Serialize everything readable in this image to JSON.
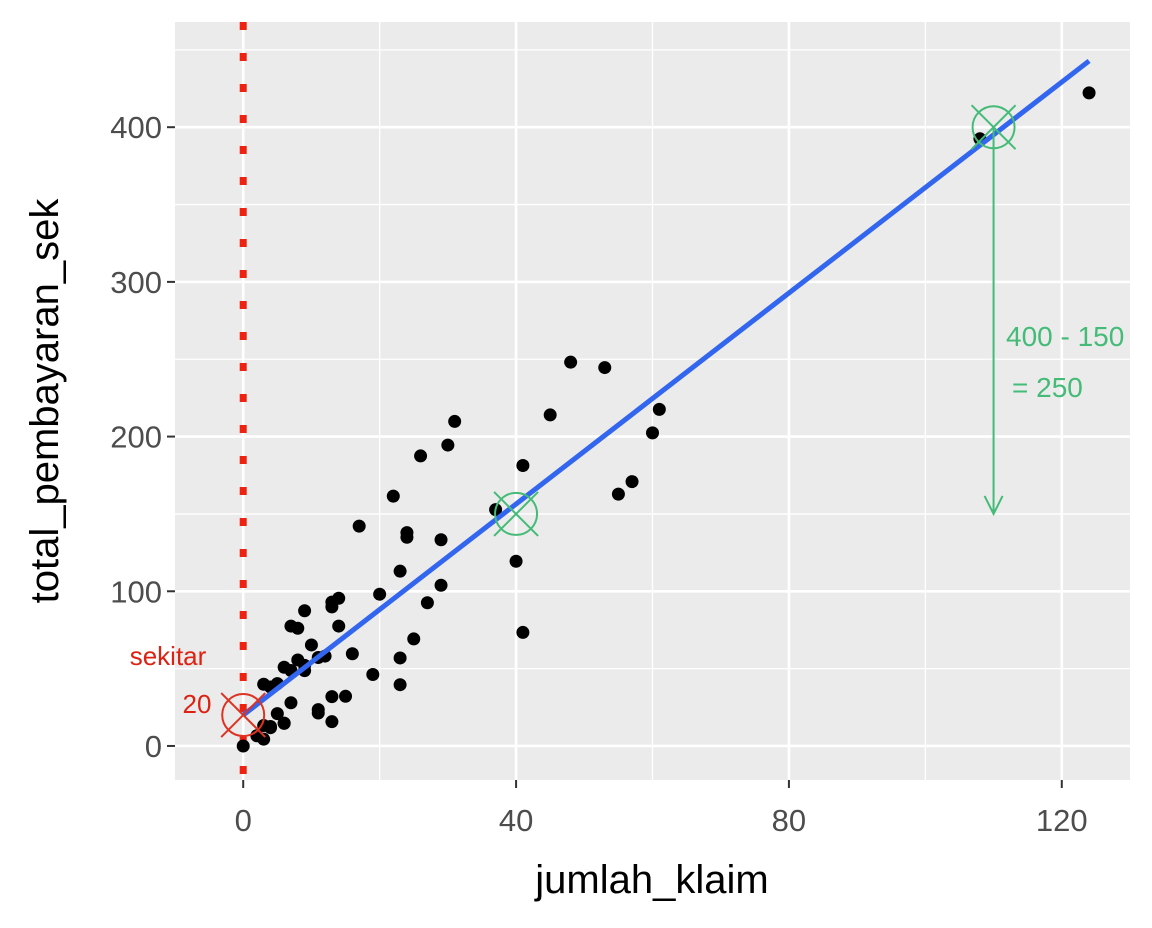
{
  "chart_data": {
    "type": "scatter",
    "title": "",
    "xlabel": "jumlah_klaim",
    "ylabel": "total_pembayaran_sek",
    "xlim": [
      -10,
      130
    ],
    "ylim": [
      -22,
      468
    ],
    "x_ticks": [
      "0",
      "40",
      "80",
      "120"
    ],
    "x_tick_values": [
      0,
      40,
      80,
      120
    ],
    "y_ticks": [
      "0",
      "100",
      "200",
      "300",
      "400"
    ],
    "y_tick_values": [
      0,
      100,
      200,
      300,
      400
    ],
    "grid": true,
    "background": "#ebebeb",
    "point_color": "#000000",
    "points": [
      [
        108,
        392.5
      ],
      [
        19,
        46.2
      ],
      [
        13,
        15.7
      ],
      [
        124,
        422.2
      ],
      [
        40,
        119.4
      ],
      [
        57,
        170.9
      ],
      [
        23,
        56.9
      ],
      [
        14,
        77.5
      ],
      [
        45,
        214
      ],
      [
        10,
        65.3
      ],
      [
        5,
        20.9
      ],
      [
        48,
        248.1
      ],
      [
        11,
        23.5
      ],
      [
        23,
        39.6
      ],
      [
        7,
        48.8
      ],
      [
        2,
        6.6
      ],
      [
        24,
        134.9
      ],
      [
        6,
        50.9
      ],
      [
        3,
        4.4
      ],
      [
        23,
        113
      ],
      [
        6,
        14.8
      ],
      [
        9,
        48.7
      ],
      [
        9,
        52.1
      ],
      [
        3,
        13.2
      ],
      [
        29,
        103.9
      ],
      [
        7,
        77.5
      ],
      [
        4,
        11.8
      ],
      [
        20,
        98.1
      ],
      [
        7,
        27.9
      ],
      [
        4,
        38.1
      ],
      [
        0,
        0
      ],
      [
        25,
        69.2
      ],
      [
        6,
        14.6
      ],
      [
        5,
        40.3
      ],
      [
        22,
        161.5
      ],
      [
        11,
        57.2
      ],
      [
        61,
        217.6
      ],
      [
        12,
        58.1
      ],
      [
        4,
        12.6
      ],
      [
        16,
        59.6
      ],
      [
        13,
        89.9
      ],
      [
        60,
        202.4
      ],
      [
        41,
        181.3
      ],
      [
        37,
        152.8
      ],
      [
        55,
        162.8
      ],
      [
        41,
        73.4
      ],
      [
        11,
        21.3
      ],
      [
        27,
        92.6
      ],
      [
        8,
        76.1
      ],
      [
        3,
        39.9
      ],
      [
        17,
        142.1
      ],
      [
        13,
        93
      ],
      [
        13,
        31.9
      ],
      [
        15,
        32.1
      ],
      [
        8,
        55.6
      ],
      [
        29,
        133.3
      ],
      [
        30,
        194.5
      ],
      [
        24,
        137.9
      ],
      [
        9,
        87.4
      ],
      [
        31,
        209.8
      ],
      [
        14,
        95.5
      ],
      [
        53,
        244.6
      ],
      [
        26,
        187.5
      ]
    ],
    "regression_line": {
      "intercept": 20,
      "slope": 3.41,
      "x_range": [
        0,
        124
      ],
      "color": "#3366ee"
    },
    "annotations": {
      "intercept_line": {
        "x": 0,
        "color": "#ee2211",
        "style": "dotted"
      },
      "intercept_marker": {
        "x": 0,
        "y": 20,
        "color": "#dd3322"
      },
      "intercept_label": [
        "sekitar",
        "20"
      ],
      "slope_markers": [
        {
          "x": 40,
          "y": 150
        },
        {
          "x": 110,
          "y": 400
        }
      ],
      "slope_color": "#44bb77",
      "slope_arrow": {
        "x": 110,
        "from": 400,
        "to": 150
      },
      "slope_label": [
        "400 - 150",
        "= 250"
      ]
    }
  }
}
